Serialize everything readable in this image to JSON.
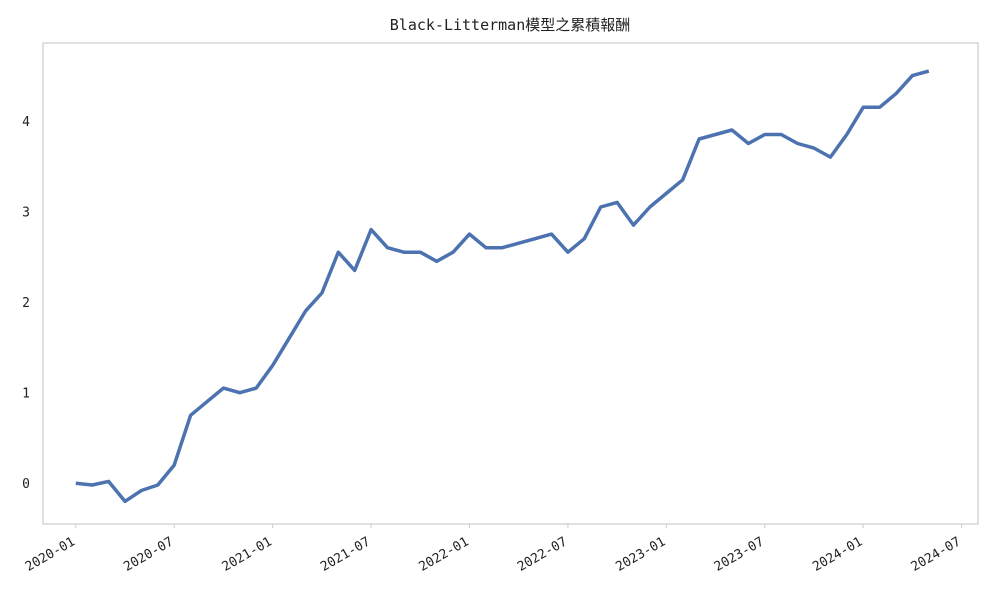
{
  "chart_data": {
    "type": "line",
    "title": "Black-Litterman模型之累積報酬",
    "x": [
      "2020-01",
      "2020-02",
      "2020-03",
      "2020-04",
      "2020-05",
      "2020-06",
      "2020-07",
      "2020-08",
      "2020-09",
      "2020-10",
      "2020-11",
      "2020-12",
      "2021-01",
      "2021-02",
      "2021-03",
      "2021-04",
      "2021-05",
      "2021-06",
      "2021-07",
      "2021-08",
      "2021-09",
      "2021-10",
      "2021-11",
      "2021-12",
      "2022-01",
      "2022-02",
      "2022-03",
      "2022-04",
      "2022-05",
      "2022-06",
      "2022-07",
      "2022-08",
      "2022-09",
      "2022-10",
      "2022-11",
      "2022-12",
      "2023-01",
      "2023-02",
      "2023-03",
      "2023-04",
      "2023-05",
      "2023-06",
      "2023-07",
      "2023-08",
      "2023-09",
      "2023-10",
      "2023-11",
      "2023-12",
      "2024-01",
      "2024-02",
      "2024-03",
      "2024-04",
      "2024-05"
    ],
    "series": [
      {
        "name": "Black-Litterman",
        "color": "#4c72b0",
        "values": [
          0,
          -0.02,
          0.02,
          -0.2,
          -0.08,
          -0.02,
          0.2,
          0.75,
          0.9,
          1.05,
          1.0,
          1.05,
          1.3,
          1.6,
          1.9,
          2.1,
          2.55,
          2.35,
          2.8,
          2.6,
          2.55,
          2.55,
          2.45,
          2.55,
          2.75,
          2.6,
          2.6,
          2.65,
          2.7,
          2.75,
          2.55,
          2.7,
          3.05,
          3.1,
          2.85,
          3.05,
          3.2,
          3.35,
          3.8,
          3.85,
          3.9,
          3.75,
          3.85,
          3.85,
          3.75,
          3.7,
          3.6,
          3.85,
          4.15,
          4.15,
          4.3,
          4.5,
          4.55
        ]
      }
    ],
    "xlim": [
      "2019-11",
      "2024-08"
    ],
    "xticks": [
      "2020-01",
      "2020-07",
      "2021-01",
      "2021-07",
      "2022-01",
      "2022-07",
      "2023-01",
      "2023-07",
      "2024-01",
      "2024-07"
    ],
    "ylim": [
      -0.45,
      4.86
    ],
    "yticks": [
      0,
      1,
      2,
      3,
      4
    ],
    "grid": false
  }
}
